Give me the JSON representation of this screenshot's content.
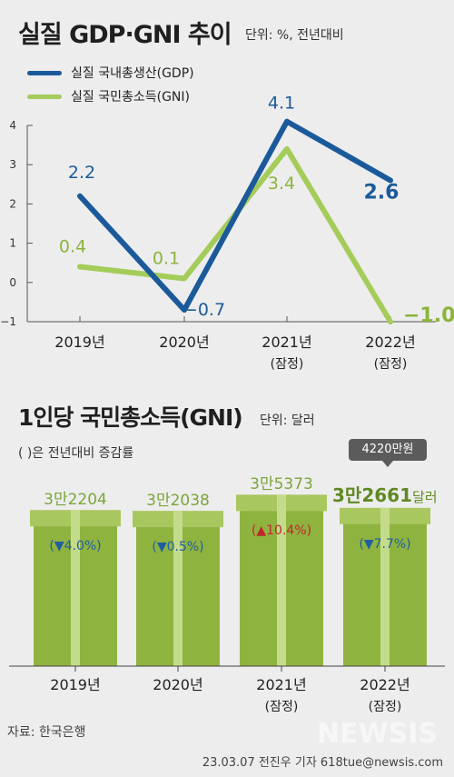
{
  "section1": {
    "title": "실질 GDP·GNI 추이",
    "unit": "단위: %, 전년대비",
    "legend": [
      {
        "label": "실질 국내총생산(GDP)",
        "color": "#1b5a9a"
      },
      {
        "label": "실질 국민총소득(GNI)",
        "color": "#a4cc5a"
      }
    ]
  },
  "chart_data": [
    {
      "type": "line",
      "title": "실질 GDP·GNI 추이",
      "categories": [
        "2019년",
        "2020년",
        "2021년",
        "2022년"
      ],
      "sub_labels": [
        "",
        "",
        "(잠정)",
        "(잠정)"
      ],
      "series": [
        {
          "name": "실질 국내총생산(GDP)",
          "values": [
            2.2,
            -0.7,
            4.1,
            2.6
          ],
          "labels": [
            "2.2",
            "−0.7",
            "4.1",
            "2.6"
          ],
          "color": "#1b5a9a"
        },
        {
          "name": "실질 국민총소득(GNI)",
          "values": [
            0.4,
            0.1,
            3.4,
            -1.0
          ],
          "labels": [
            "0.4",
            "0.1",
            "3.4",
            "−1.0"
          ],
          "color": "#a4cc5a"
        }
      ],
      "yticks": [
        4,
        3,
        2,
        1,
        0,
        -1
      ],
      "ytick_labels": [
        "4",
        "3",
        "2",
        "1",
        "0",
        "−1"
      ],
      "ylim": [
        -1,
        4
      ],
      "grid": false
    },
    {
      "type": "bar",
      "title": "1인당 국민총소득(GNI)",
      "categories": [
        "2019년",
        "2020년",
        "2021년",
        "2022년"
      ],
      "sub_labels": [
        "",
        "",
        "(잠정)",
        "(잠정)"
      ],
      "values": [
        32204,
        32038,
        35373,
        32661
      ],
      "value_labels": [
        "3만2204",
        "3만2038",
        "3만5373",
        "3만2661"
      ],
      "changes": [
        "(▼4.0%)",
        "(▼0.5%)",
        "(▲10.4%)",
        "(▼7.7%)"
      ],
      "change_colors": [
        "#1f5fa0",
        "#1f5fa0",
        "#c0272d",
        "#1f5fa0"
      ],
      "ylim": [
        0,
        36000
      ]
    }
  ],
  "section2": {
    "title": "1인당 국민총소득(GNI)",
    "unit": "단위: 달러",
    "note": "( )은 전년대비 증감률",
    "callout": "4220만원",
    "last_value": "3만2661",
    "last_unit": "달러"
  },
  "footer": {
    "source": "자료: 한국은행",
    "byline": "23.03.07 전진우 기자 618tue@newsis.com",
    "watermark": "NEWSIS"
  }
}
